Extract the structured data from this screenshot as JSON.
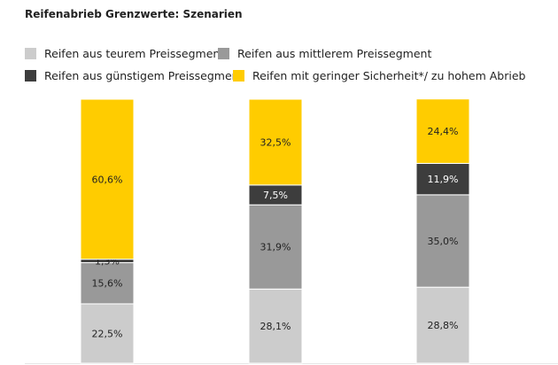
{
  "chart_data": {
    "type": "bar",
    "stacked": true,
    "title": "Reifenabrieb Grenzwerte: Szenarien",
    "categories": [
      "",
      "",
      ""
    ],
    "series": [
      {
        "name": "Reifen aus teurem Preissegment",
        "color": "#cccccc",
        "label_color": "#222222",
        "values": [
          22.5,
          28.1,
          28.8
        ],
        "labels": [
          "22,5%",
          "28,1%",
          "28,8%"
        ]
      },
      {
        "name": "Reifen aus mittlerem Preissegment",
        "color": "#999999",
        "label_color": "#222222",
        "values": [
          15.6,
          31.9,
          35.0
        ],
        "labels": [
          "15,6%",
          "31,9%",
          "35,0%"
        ]
      },
      {
        "name": "Reifen aus günstigem Preissegment",
        "color": "#3d3d3d",
        "label_color": "#ffffff",
        "values": [
          1.3,
          7.5,
          11.9
        ],
        "labels": [
          "1,3%",
          "7,5%",
          "11,9%"
        ]
      },
      {
        "name": "Reifen mit geringer Sicherheit*/ zu hohem Abrieb",
        "color": "#ffcc00",
        "label_color": "#222222",
        "values": [
          60.6,
          32.5,
          24.4
        ],
        "labels": [
          "60,6%",
          "32,5%",
          "24,4%"
        ]
      }
    ],
    "ylim": [
      0,
      100
    ],
    "legend_position": "top-left",
    "grid": false
  }
}
